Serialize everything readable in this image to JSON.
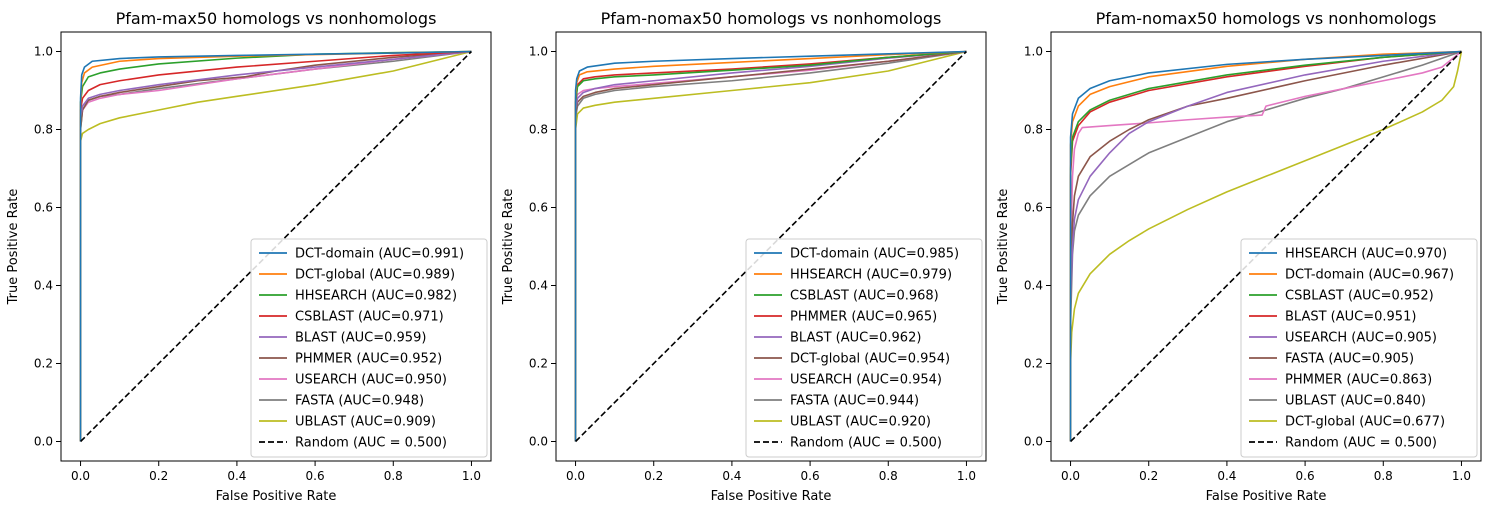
{
  "chart_data": [
    {
      "type": "line",
      "title": "Pfam-max50 homologs vs nonhomologs",
      "xlabel": "False Positive Rate",
      "ylabel": "True Positive Rate",
      "xlim": [
        -0.05,
        1.05
      ],
      "ylim": [
        -0.05,
        1.05
      ],
      "xticks": [
        "0.0",
        "0.2",
        "0.4",
        "0.6",
        "0.8",
        "1.0"
      ],
      "yticks": [
        "0.0",
        "0.2",
        "0.4",
        "0.6",
        "0.8",
        "1.0"
      ],
      "grid": false,
      "legend_position": "lower-right",
      "series": [
        {
          "name": "DCT-domain (AUC=0.991)",
          "color": "#1f77b4",
          "x": [
            0,
            0,
            0.003,
            0.01,
            0.03,
            0.1,
            0.2,
            0.4,
            0.6,
            0.8,
            1.0
          ],
          "y": [
            0,
            0.88,
            0.94,
            0.96,
            0.975,
            0.982,
            0.986,
            0.99,
            0.993,
            0.996,
            1.0
          ]
        },
        {
          "name": "DCT-global (AUC=0.989)",
          "color": "#ff7f0e",
          "x": [
            0,
            0,
            0.003,
            0.01,
            0.03,
            0.1,
            0.2,
            0.4,
            0.6,
            0.8,
            1.0
          ],
          "y": [
            0,
            0.86,
            0.92,
            0.945,
            0.96,
            0.975,
            0.982,
            0.988,
            0.992,
            0.996,
            1.0
          ]
        },
        {
          "name": "HHSEARCH (AUC=0.982)",
          "color": "#2ca02c",
          "x": [
            0,
            0,
            0.005,
            0.02,
            0.05,
            0.1,
            0.2,
            0.4,
            0.6,
            0.8,
            1.0
          ],
          "y": [
            0,
            0.87,
            0.91,
            0.935,
            0.945,
            0.955,
            0.968,
            0.983,
            0.993,
            0.997,
            1.0
          ]
        },
        {
          "name": "CSBLAST (AUC=0.971)",
          "color": "#d62728",
          "x": [
            0,
            0,
            0.005,
            0.02,
            0.05,
            0.1,
            0.2,
            0.4,
            0.6,
            0.8,
            1.0
          ],
          "y": [
            0,
            0.85,
            0.88,
            0.9,
            0.915,
            0.925,
            0.94,
            0.96,
            0.975,
            0.99,
            1.0
          ]
        },
        {
          "name": "BLAST (AUC=0.959)",
          "color": "#9467bd",
          "x": [
            0,
            0,
            0.005,
            0.02,
            0.05,
            0.1,
            0.2,
            0.4,
            0.6,
            0.8,
            1.0
          ],
          "y": [
            0,
            0.83,
            0.86,
            0.88,
            0.89,
            0.9,
            0.915,
            0.94,
            0.96,
            0.98,
            1.0
          ]
        },
        {
          "name": "PHMMER (AUC=0.952)",
          "color": "#8c564b",
          "x": [
            0,
            0,
            0.005,
            0.02,
            0.05,
            0.1,
            0.2,
            0.3,
            0.42,
            0.5,
            0.6,
            0.8,
            1.0
          ],
          "y": [
            0,
            0.8,
            0.85,
            0.875,
            0.885,
            0.895,
            0.91,
            0.925,
            0.935,
            0.95,
            0.965,
            0.985,
            1.0
          ]
        },
        {
          "name": "USEARCH (AUC=0.950)",
          "color": "#e377c2",
          "x": [
            0,
            0,
            0.005,
            0.02,
            0.05,
            0.1,
            0.2,
            0.4,
            0.6,
            0.8,
            1.0
          ],
          "y": [
            0,
            0.82,
            0.85,
            0.87,
            0.88,
            0.89,
            0.9,
            0.93,
            0.955,
            0.98,
            1.0
          ]
        },
        {
          "name": "FASTA (AUC=0.948)",
          "color": "#7f7f7f",
          "x": [
            0,
            0,
            0.005,
            0.02,
            0.05,
            0.1,
            0.2,
            0.4,
            0.6,
            0.8,
            1.0
          ],
          "y": [
            0,
            0.8,
            0.85,
            0.875,
            0.885,
            0.89,
            0.905,
            0.93,
            0.955,
            0.975,
            1.0
          ]
        },
        {
          "name": "UBLAST (AUC=0.909)",
          "color": "#bcbd22",
          "x": [
            0,
            0,
            0.005,
            0.02,
            0.05,
            0.1,
            0.2,
            0.3,
            0.4,
            0.6,
            0.8,
            1.0
          ],
          "y": [
            0,
            0.77,
            0.79,
            0.8,
            0.815,
            0.83,
            0.85,
            0.87,
            0.885,
            0.915,
            0.95,
            1.0
          ]
        },
        {
          "name": "Random (AUC = 0.500)",
          "color": "#000000",
          "dashed": true,
          "x": [
            0,
            1
          ],
          "y": [
            0,
            1
          ]
        }
      ]
    },
    {
      "type": "line",
      "title": "Pfam-nomax50 homologs vs nonhomologs",
      "xlabel": "False Positive Rate",
      "ylabel": "True Positive Rate",
      "xlim": [
        -0.05,
        1.05
      ],
      "ylim": [
        -0.05,
        1.05
      ],
      "xticks": [
        "0.0",
        "0.2",
        "0.4",
        "0.6",
        "0.8",
        "1.0"
      ],
      "yticks": [
        "0.0",
        "0.2",
        "0.4",
        "0.6",
        "0.8",
        "1.0"
      ],
      "grid": false,
      "legend_position": "lower-right",
      "series": [
        {
          "name": "DCT-domain (AUC=0.985)",
          "color": "#1f77b4",
          "x": [
            0,
            0,
            0.003,
            0.01,
            0.03,
            0.1,
            0.2,
            0.4,
            0.6,
            0.8,
            1.0
          ],
          "y": [
            0,
            0.9,
            0.93,
            0.95,
            0.96,
            0.97,
            0.975,
            0.982,
            0.988,
            0.994,
            1.0
          ]
        },
        {
          "name": "HHSEARCH (AUC=0.979)",
          "color": "#ff7f0e",
          "x": [
            0,
            0,
            0.003,
            0.01,
            0.03,
            0.1,
            0.2,
            0.4,
            0.6,
            0.8,
            1.0
          ],
          "y": [
            0,
            0.88,
            0.92,
            0.94,
            0.948,
            0.955,
            0.962,
            0.972,
            0.982,
            0.992,
            1.0
          ]
        },
        {
          "name": "CSBLAST (AUC=0.968)",
          "color": "#2ca02c",
          "x": [
            0,
            0,
            0.005,
            0.02,
            0.05,
            0.1,
            0.2,
            0.4,
            0.6,
            0.8,
            1.0
          ],
          "y": [
            0,
            0.87,
            0.91,
            0.925,
            0.93,
            0.935,
            0.94,
            0.952,
            0.965,
            0.985,
            1.0
          ]
        },
        {
          "name": "PHMMER (AUC=0.965)",
          "color": "#d62728",
          "x": [
            0,
            0,
            0.005,
            0.02,
            0.05,
            0.1,
            0.2,
            0.4,
            0.6,
            0.8,
            1.0
          ],
          "y": [
            0,
            0.87,
            0.915,
            0.93,
            0.935,
            0.94,
            0.945,
            0.955,
            0.968,
            0.985,
            1.0
          ]
        },
        {
          "name": "BLAST (AUC=0.962)",
          "color": "#9467bd",
          "x": [
            0,
            0,
            0.005,
            0.02,
            0.05,
            0.1,
            0.2,
            0.4,
            0.6,
            0.8,
            1.0
          ],
          "y": [
            0,
            0.85,
            0.88,
            0.895,
            0.905,
            0.915,
            0.925,
            0.945,
            0.962,
            0.983,
            1.0
          ]
        },
        {
          "name": "DCT-global (AUC=0.954)",
          "color": "#8c564b",
          "x": [
            0,
            0,
            0.005,
            0.02,
            0.05,
            0.1,
            0.2,
            0.4,
            0.6,
            0.8,
            1.0
          ],
          "y": [
            0,
            0.84,
            0.87,
            0.885,
            0.895,
            0.905,
            0.915,
            0.935,
            0.955,
            0.975,
            1.0
          ]
        },
        {
          "name": "USEARCH (AUC=0.954)",
          "color": "#e377c2",
          "x": [
            0,
            0,
            0.005,
            0.02,
            0.05,
            0.1,
            0.2,
            0.4,
            0.6,
            0.8,
            1.0
          ],
          "y": [
            0,
            0.86,
            0.89,
            0.9,
            0.905,
            0.91,
            0.918,
            0.935,
            0.952,
            0.975,
            1.0
          ]
        },
        {
          "name": "FASTA (AUC=0.944)",
          "color": "#7f7f7f",
          "x": [
            0,
            0,
            0.005,
            0.02,
            0.05,
            0.1,
            0.2,
            0.4,
            0.6,
            0.8,
            1.0
          ],
          "y": [
            0,
            0.83,
            0.86,
            0.88,
            0.89,
            0.9,
            0.91,
            0.925,
            0.945,
            0.97,
            1.0
          ]
        },
        {
          "name": "UBLAST (AUC=0.920)",
          "color": "#bcbd22",
          "x": [
            0,
            0,
            0.005,
            0.02,
            0.05,
            0.1,
            0.2,
            0.4,
            0.6,
            0.8,
            0.9,
            1.0
          ],
          "y": [
            0,
            0.8,
            0.84,
            0.855,
            0.862,
            0.87,
            0.88,
            0.9,
            0.92,
            0.95,
            0.975,
            1.0
          ]
        },
        {
          "name": "Random (AUC = 0.500)",
          "color": "#000000",
          "dashed": true,
          "x": [
            0,
            1
          ],
          "y": [
            0,
            1
          ]
        }
      ]
    },
    {
      "type": "line",
      "title": "Pfam-nomax50 homologs vs nonhomologs",
      "xlabel": "False Positive Rate",
      "ylabel": "True Positive Rate",
      "xlim": [
        -0.05,
        1.05
      ],
      "ylim": [
        -0.05,
        1.05
      ],
      "xticks": [
        "0.0",
        "0.2",
        "0.4",
        "0.6",
        "0.8",
        "1.0"
      ],
      "yticks": [
        "0.0",
        "0.2",
        "0.4",
        "0.6",
        "0.8",
        "1.0"
      ],
      "grid": false,
      "legend_position": "lower-right",
      "series": [
        {
          "name": "HHSEARCH (AUC=0.970)",
          "color": "#1f77b4",
          "x": [
            0,
            0,
            0.005,
            0.02,
            0.05,
            0.1,
            0.2,
            0.4,
            0.6,
            0.8,
            1.0
          ],
          "y": [
            0,
            0.78,
            0.84,
            0.88,
            0.905,
            0.925,
            0.945,
            0.967,
            0.98,
            0.99,
            1.0
          ]
        },
        {
          "name": "DCT-domain (AUC=0.967)",
          "color": "#ff7f0e",
          "x": [
            0,
            0,
            0.005,
            0.02,
            0.05,
            0.1,
            0.2,
            0.4,
            0.6,
            0.8,
            1.0
          ],
          "y": [
            0,
            0.76,
            0.82,
            0.86,
            0.89,
            0.91,
            0.935,
            0.962,
            0.98,
            0.993,
            1.0
          ]
        },
        {
          "name": "CSBLAST (AUC=0.952)",
          "color": "#2ca02c",
          "x": [
            0,
            0,
            0.005,
            0.02,
            0.05,
            0.1,
            0.2,
            0.4,
            0.6,
            0.8,
            1.0
          ],
          "y": [
            0,
            0.7,
            0.78,
            0.82,
            0.85,
            0.875,
            0.905,
            0.94,
            0.965,
            0.985,
            1.0
          ]
        },
        {
          "name": "BLAST (AUC=0.951)",
          "color": "#d62728",
          "x": [
            0,
            0,
            0.005,
            0.02,
            0.05,
            0.1,
            0.2,
            0.4,
            0.6,
            0.8,
            1.0
          ],
          "y": [
            0,
            0.68,
            0.77,
            0.81,
            0.845,
            0.87,
            0.9,
            0.935,
            0.962,
            0.985,
            1.0
          ]
        },
        {
          "name": "USEARCH (AUC=0.905)",
          "color": "#9467bd",
          "x": [
            0,
            0,
            0.005,
            0.01,
            0.02,
            0.05,
            0.1,
            0.15,
            0.2,
            0.3,
            0.4,
            0.6,
            0.8,
            1.0
          ],
          "y": [
            0,
            0.35,
            0.5,
            0.57,
            0.62,
            0.68,
            0.74,
            0.79,
            0.82,
            0.86,
            0.895,
            0.94,
            0.975,
            1.0
          ]
        },
        {
          "name": "FASTA (AUC=0.905)",
          "color": "#8c564b",
          "x": [
            0,
            0,
            0.005,
            0.01,
            0.02,
            0.05,
            0.1,
            0.15,
            0.2,
            0.3,
            0.4,
            0.6,
            0.8,
            1.0
          ],
          "y": [
            0,
            0.4,
            0.56,
            0.63,
            0.68,
            0.73,
            0.77,
            0.8,
            0.825,
            0.86,
            0.88,
            0.925,
            0.965,
            1.0
          ]
        },
        {
          "name": "PHMMER (AUC=0.863)",
          "color": "#e377c2",
          "x": [
            0,
            0,
            0.002,
            0.005,
            0.01,
            0.02,
            0.03,
            0.1,
            0.2,
            0.3,
            0.4,
            0.49,
            0.5,
            0.6,
            0.7,
            0.8,
            0.9,
            0.95,
            1.0
          ],
          "y": [
            0,
            0.3,
            0.55,
            0.68,
            0.75,
            0.79,
            0.805,
            0.81,
            0.817,
            0.825,
            0.832,
            0.837,
            0.86,
            0.885,
            0.905,
            0.925,
            0.945,
            0.96,
            1.0
          ]
        },
        {
          "name": "UBLAST (AUC=0.840)",
          "color": "#7f7f7f",
          "x": [
            0,
            0,
            0.005,
            0.01,
            0.02,
            0.05,
            0.1,
            0.2,
            0.3,
            0.4,
            0.5,
            0.6,
            0.7,
            0.8,
            0.9,
            1.0
          ],
          "y": [
            0,
            0.3,
            0.48,
            0.54,
            0.58,
            0.63,
            0.68,
            0.74,
            0.78,
            0.82,
            0.85,
            0.88,
            0.905,
            0.935,
            0.965,
            1.0
          ]
        },
        {
          "name": "DCT-global (AUC=0.677)",
          "color": "#bcbd22",
          "x": [
            0,
            0,
            0.003,
            0.01,
            0.02,
            0.05,
            0.1,
            0.15,
            0.2,
            0.3,
            0.4,
            0.5,
            0.6,
            0.7,
            0.8,
            0.9,
            0.95,
            0.98,
            0.99,
            1.0
          ],
          "y": [
            0,
            0.2,
            0.28,
            0.34,
            0.38,
            0.43,
            0.48,
            0.515,
            0.545,
            0.595,
            0.64,
            0.68,
            0.72,
            0.76,
            0.8,
            0.845,
            0.875,
            0.91,
            0.95,
            1.0
          ]
        },
        {
          "name": "Random (AUC = 0.500)",
          "color": "#000000",
          "dashed": true,
          "x": [
            0,
            1
          ],
          "y": [
            0,
            1
          ]
        }
      ]
    }
  ]
}
